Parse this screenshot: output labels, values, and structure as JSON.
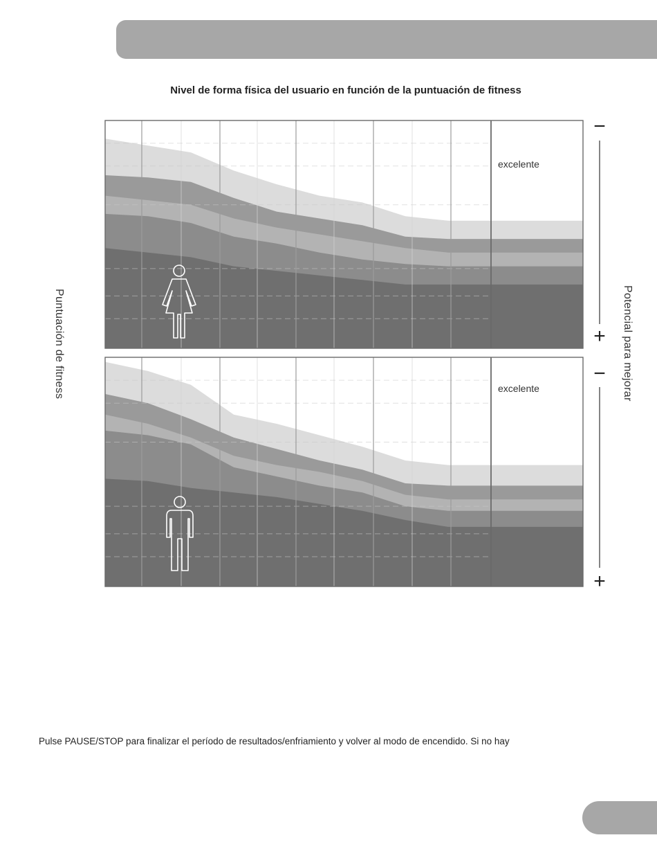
{
  "page": {
    "title": "Nivel de forma física del usuario en función de la puntuación de fitness",
    "y_axis_left": "Puntuación de fitness",
    "y_axis_right": "Potencial para mejorar",
    "scale_minus": "−",
    "scale_plus": "+",
    "body_text": "Pulse PAUSE/STOP para finalizar el período de resultados/enfriamiento y volver al modo de encendido. Si no hay"
  },
  "colors": {
    "band_1": "#dcdcdc",
    "band_2": "#9a9a9a",
    "band_3": "#b3b3b3",
    "band_4": "#8c8c8c",
    "band_5": "#6f6f6f",
    "header_tab": "#a7a7a7"
  },
  "chart_data": [
    {
      "type": "area",
      "subject": "female-icon",
      "band_label": "excelente",
      "ylim": [
        0,
        100
      ],
      "x": [
        0,
        1,
        2,
        3,
        4,
        5,
        6,
        7,
        8,
        9
      ],
      "bands_top": [
        [
          92,
          89,
          86,
          78,
          72,
          67,
          64,
          58,
          56,
          56
        ],
        [
          76,
          75,
          73,
          66,
          60,
          57,
          54,
          49,
          48,
          48
        ],
        [
          67,
          65,
          63,
          57,
          53,
          50,
          47,
          44,
          42,
          42
        ],
        [
          59,
          58,
          55,
          49,
          46,
          42,
          39,
          37,
          36,
          36
        ],
        [
          44,
          42,
          40,
          36,
          34,
          32,
          30,
          28,
          28,
          28
        ]
      ]
    },
    {
      "type": "area",
      "subject": "male-icon",
      "band_label": "excelente",
      "ylim": [
        0,
        100
      ],
      "x": [
        0,
        1,
        2,
        3,
        4,
        5,
        6,
        7,
        8,
        9
      ],
      "bands_top": [
        [
          98,
          94,
          88,
          75,
          71,
          66,
          61,
          55,
          53,
          53
        ],
        [
          84,
          80,
          73,
          65,
          60,
          55,
          51,
          45,
          44,
          44
        ],
        [
          75,
          71,
          65,
          57,
          53,
          50,
          46,
          40,
          38,
          38
        ],
        [
          68,
          66,
          62,
          52,
          48,
          44,
          41,
          35,
          33,
          33
        ],
        [
          47,
          46,
          43,
          41,
          39,
          36,
          33,
          29,
          26,
          26
        ]
      ]
    }
  ]
}
